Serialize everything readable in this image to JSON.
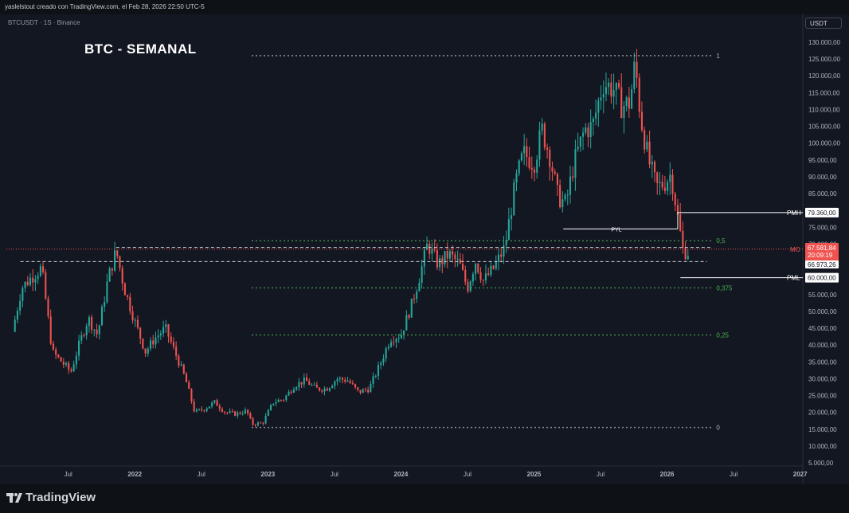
{
  "header": {
    "caption": "yaslelstout creado con TradingView.com, el Feb 28, 2026 22:50 UTC-5",
    "symbol": "BTCUSDT · 1S · Binance",
    "currency": "USDT"
  },
  "footer": {
    "brand": "TradingView"
  },
  "chart_data": {
    "type": "candlestick",
    "title": "BTC - SEMANAL",
    "ylim": [
      5000,
      135000
    ],
    "price_ticks": [
      "5.000,00",
      "10.000,00",
      "15.000,00",
      "20.000,00",
      "25.000,00",
      "30.000,00",
      "35.000,00",
      "40.000,00",
      "45.000,00",
      "50.000,00",
      "55.000,00",
      "60.000,00",
      "65.000,00",
      "70.000,00",
      "75.000,00",
      "80.000,00",
      "85.000,00",
      "90.000,00",
      "95.000,00",
      "100.000,00",
      "105.000,00",
      "110.000,00",
      "115.000,00",
      "120.000,00",
      "125.000,00",
      "130.000,00"
    ],
    "time_ticks": [
      {
        "label": "Jul",
        "t": 2021.5
      },
      {
        "label": "2022",
        "t": 2022.0
      },
      {
        "label": "Jul",
        "t": 2022.5
      },
      {
        "label": "2023",
        "t": 2023.0
      },
      {
        "label": "Jul",
        "t": 2023.5
      },
      {
        "label": "2024",
        "t": 2024.0
      },
      {
        "label": "Jul",
        "t": 2024.5
      },
      {
        "label": "2025",
        "t": 2025.0
      },
      {
        "label": "Jul",
        "t": 2025.5
      },
      {
        "label": "2026",
        "t": 2026.0
      },
      {
        "label": "Jul",
        "t": 2026.5
      },
      {
        "label": "2027",
        "t": 2027.0
      }
    ],
    "price_path": [
      [
        2021.08,
        44000
      ],
      [
        2021.15,
        57000
      ],
      [
        2021.22,
        60000
      ],
      [
        2021.3,
        63000
      ],
      [
        2021.38,
        38000
      ],
      [
        2021.45,
        35000
      ],
      [
        2021.52,
        32000
      ],
      [
        2021.58,
        40000
      ],
      [
        2021.65,
        48000
      ],
      [
        2021.72,
        43000
      ],
      [
        2021.8,
        60000
      ],
      [
        2021.86,
        68000
      ],
      [
        2021.92,
        57000
      ],
      [
        2022.0,
        47000
      ],
      [
        2022.08,
        38000
      ],
      [
        2022.15,
        42000
      ],
      [
        2022.23,
        45000
      ],
      [
        2022.3,
        38000
      ],
      [
        2022.38,
        30000
      ],
      [
        2022.45,
        20000
      ],
      [
        2022.52,
        21000
      ],
      [
        2022.6,
        23000
      ],
      [
        2022.68,
        20000
      ],
      [
        2022.76,
        19500
      ],
      [
        2022.84,
        20500
      ],
      [
        2022.88,
        16500
      ],
      [
        2022.96,
        16800
      ],
      [
        2023.04,
        23000
      ],
      [
        2023.12,
        24000
      ],
      [
        2023.2,
        28000
      ],
      [
        2023.28,
        29500
      ],
      [
        2023.36,
        27000
      ],
      [
        2023.44,
        27000
      ],
      [
        2023.52,
        30000
      ],
      [
        2023.6,
        29500
      ],
      [
        2023.68,
        26000
      ],
      [
        2023.76,
        27000
      ],
      [
        2023.84,
        34000
      ],
      [
        2023.92,
        42000
      ],
      [
        2024.0,
        43000
      ],
      [
        2024.08,
        52000
      ],
      [
        2024.15,
        62000
      ],
      [
        2024.2,
        70000
      ],
      [
        2024.28,
        64000
      ],
      [
        2024.36,
        67000
      ],
      [
        2024.44,
        64000
      ],
      [
        2024.5,
        57000
      ],
      [
        2024.56,
        65000
      ],
      [
        2024.62,
        59000
      ],
      [
        2024.7,
        63000
      ],
      [
        2024.78,
        69000
      ],
      [
        2024.86,
        88000
      ],
      [
        2024.92,
        97000
      ],
      [
        2025.0,
        94000
      ],
      [
        2025.06,
        104000
      ],
      [
        2025.12,
        96000
      ],
      [
        2025.18,
        84000
      ],
      [
        2025.24,
        82000
      ],
      [
        2025.3,
        94000
      ],
      [
        2025.38,
        104000
      ],
      [
        2025.44,
        105000
      ],
      [
        2025.52,
        118000
      ],
      [
        2025.6,
        116000
      ],
      [
        2025.66,
        111000
      ],
      [
        2025.72,
        112000
      ],
      [
        2025.76,
        124000
      ],
      [
        2025.8,
        108000
      ],
      [
        2025.86,
        95000
      ],
      [
        2025.92,
        87000
      ],
      [
        2025.98,
        88000
      ],
      [
        2026.03,
        91000
      ],
      [
        2026.08,
        78000
      ],
      [
        2026.12,
        68000
      ],
      [
        2026.16,
        67581
      ]
    ],
    "levels": [
      {
        "label": "1",
        "price": 126000
      },
      {
        "label": "0,5",
        "price": 71000
      },
      {
        "label": "0,375",
        "price": 57000
      },
      {
        "label": "0,25",
        "price": 43000
      },
      {
        "label": "0",
        "price": 15500
      }
    ],
    "horizontal_lines": [
      {
        "label": "PMH",
        "price": 79360,
        "tag": "79.360,00"
      },
      {
        "label": "PYL",
        "price": 74500
      },
      {
        "label": "MO",
        "price": 68500
      },
      {
        "label": "PML",
        "price": 60000,
        "tag": "60.000,00"
      }
    ],
    "current_price": {
      "price": "67.581,84",
      "countdown": "20:09:19",
      "secondary": "66.973,26"
    }
  }
}
